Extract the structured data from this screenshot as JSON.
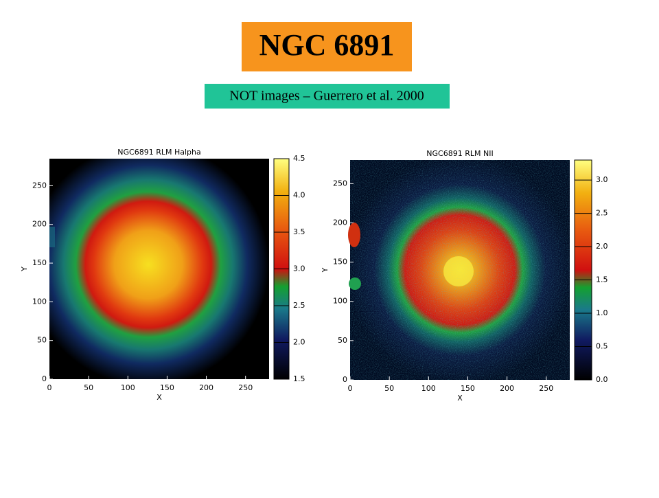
{
  "header": {
    "title": "NGC 6891",
    "subtitle": "NOT images – Guerrero et al. 2000"
  },
  "panels": [
    {
      "title": "NGC6891 RLM Halpha",
      "x_label": "X",
      "y_label": "Y",
      "xlim": [
        0,
        280
      ],
      "ylim": [
        0,
        285
      ],
      "xticks": [
        0,
        50,
        100,
        150,
        200,
        250
      ],
      "yticks": [
        0,
        50,
        100,
        150,
        200,
        250
      ],
      "clim": [
        1.5,
        4.5
      ],
      "colorbar_ticks": [
        1.5,
        {
          "value": 2,
          "label": "2.0"
        },
        2.5,
        {
          "value": 3,
          "label": "3.0"
        },
        3.5,
        {
          "value": 4,
          "label": "4.0"
        },
        4.5
      ]
    },
    {
      "title": "NGC6891 RLM NII",
      "x_label": "X",
      "y_label": "Y",
      "xlim": [
        0,
        280
      ],
      "ylim": [
        0,
        280
      ],
      "xticks": [
        0,
        50,
        100,
        150,
        200,
        250
      ],
      "yticks": [
        0,
        50,
        100,
        150,
        200,
        250
      ],
      "clim": [
        0,
        3.3
      ],
      "colorbar_ticks": [
        {
          "value": 0,
          "label": "0.0"
        },
        0.5,
        {
          "value": 1,
          "label": "1.0"
        },
        1.5,
        {
          "value": 2,
          "label": "2.0"
        },
        2.5,
        {
          "value": 3,
          "label": "3.0"
        }
      ]
    }
  ]
}
